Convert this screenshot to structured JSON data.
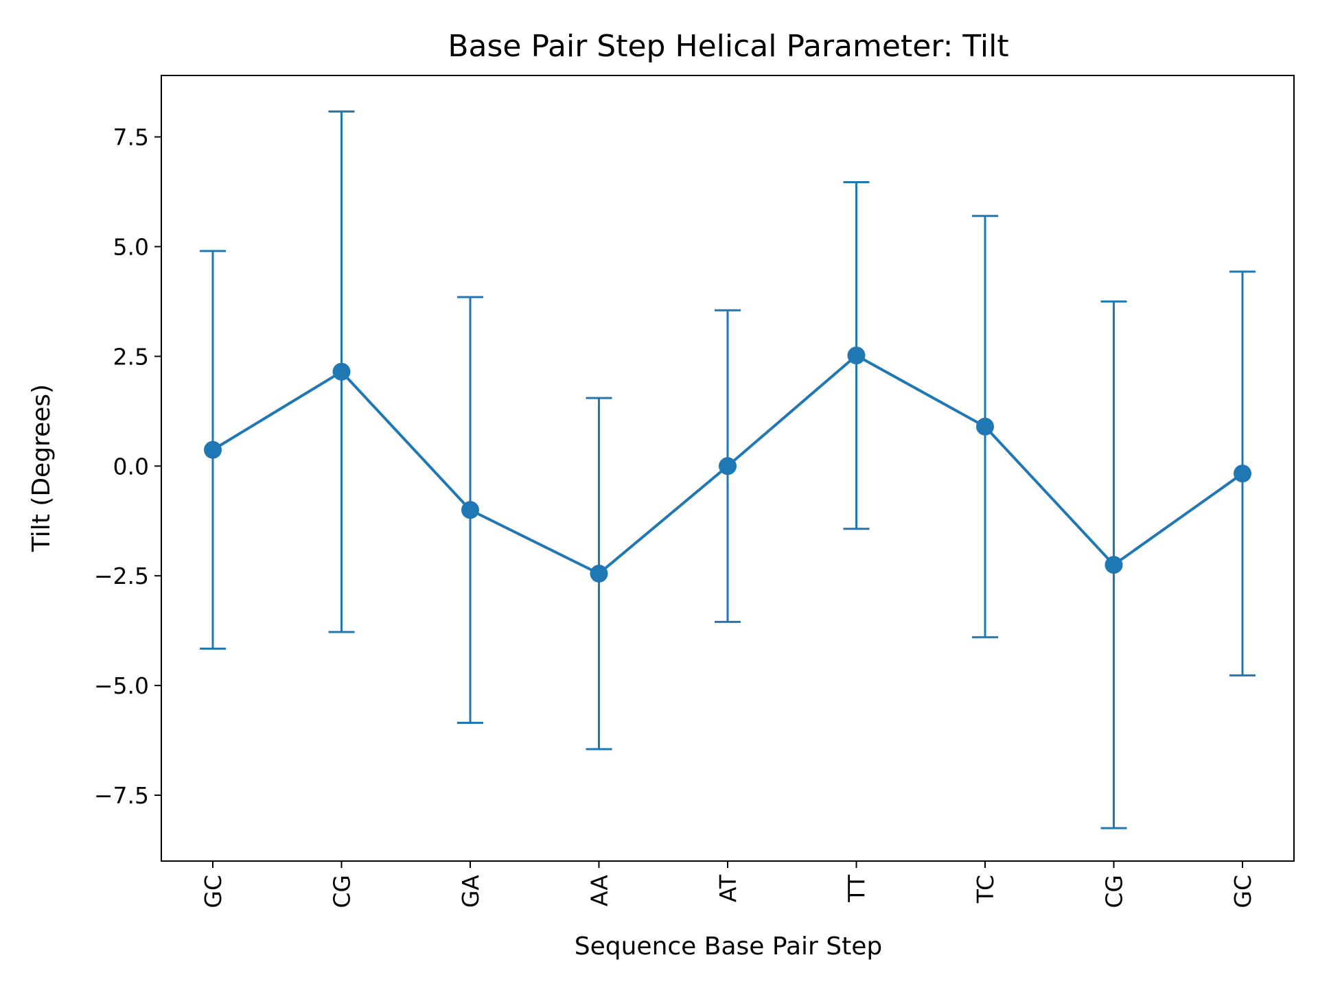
{
  "chart_data": {
    "type": "line",
    "title": "Base Pair Step Helical Parameter: Tilt",
    "xlabel": "Sequence Base Pair Step",
    "ylabel": "Tilt (Degrees)",
    "categories": [
      "GC",
      "CG",
      "GA",
      "AA",
      "AT",
      "TT",
      "TC",
      "CG",
      "GC"
    ],
    "series": [
      {
        "values": [
          0.37,
          2.15,
          -1.0,
          -2.45,
          0.0,
          2.52,
          0.9,
          -2.25,
          -0.17
        ],
        "error": [
          4.53,
          5.93,
          4.85,
          4.0,
          3.55,
          3.95,
          4.8,
          6.0,
          4.6
        ],
        "color": "#1f77b4"
      }
    ],
    "ylim": [
      -9.0,
      8.9
    ],
    "yticks": [
      -7.5,
      -5.0,
      -2.5,
      0.0,
      2.5,
      5.0,
      7.5
    ],
    "ytick_labels": [
      "−7.5",
      "−5.0",
      "−2.5",
      "0.0",
      "2.5",
      "5.0",
      "7.5"
    ],
    "grid": false,
    "marker": "circle",
    "error_bars": true
  }
}
